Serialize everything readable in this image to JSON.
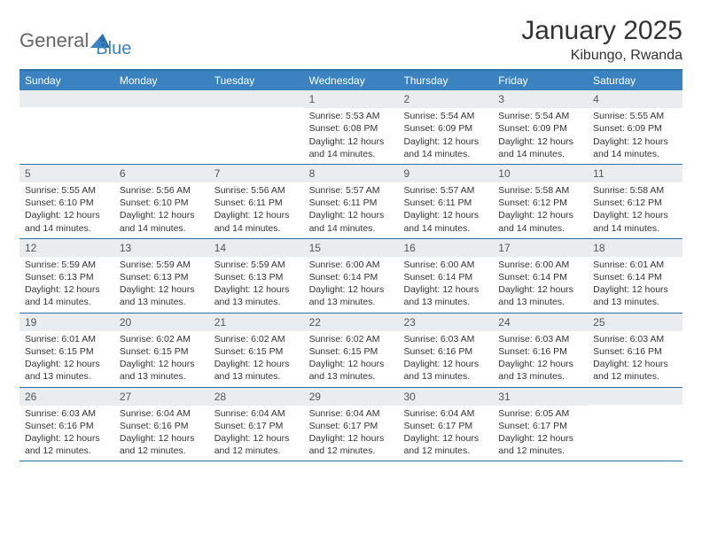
{
  "logo": {
    "part1": "General",
    "part2": "Blue"
  },
  "title": "January 2025",
  "location": "Kibungo, Rwanda",
  "colors": {
    "header_bg": "#3b83c0",
    "border": "#2a6fa8",
    "daynum_bg": "#e9edf0",
    "text": "#333333",
    "logo_gray": "#666666"
  },
  "weekdays": [
    "Sunday",
    "Monday",
    "Tuesday",
    "Wednesday",
    "Thursday",
    "Friday",
    "Saturday"
  ],
  "weeks": [
    [
      {
        "n": "",
        "sr": "",
        "ss": "",
        "dl": ""
      },
      {
        "n": "",
        "sr": "",
        "ss": "",
        "dl": ""
      },
      {
        "n": "",
        "sr": "",
        "ss": "",
        "dl": ""
      },
      {
        "n": "1",
        "sr": "Sunrise: 5:53 AM",
        "ss": "Sunset: 6:08 PM",
        "dl": "Daylight: 12 hours and 14 minutes."
      },
      {
        "n": "2",
        "sr": "Sunrise: 5:54 AM",
        "ss": "Sunset: 6:09 PM",
        "dl": "Daylight: 12 hours and 14 minutes."
      },
      {
        "n": "3",
        "sr": "Sunrise: 5:54 AM",
        "ss": "Sunset: 6:09 PM",
        "dl": "Daylight: 12 hours and 14 minutes."
      },
      {
        "n": "4",
        "sr": "Sunrise: 5:55 AM",
        "ss": "Sunset: 6:09 PM",
        "dl": "Daylight: 12 hours and 14 minutes."
      }
    ],
    [
      {
        "n": "5",
        "sr": "Sunrise: 5:55 AM",
        "ss": "Sunset: 6:10 PM",
        "dl": "Daylight: 12 hours and 14 minutes."
      },
      {
        "n": "6",
        "sr": "Sunrise: 5:56 AM",
        "ss": "Sunset: 6:10 PM",
        "dl": "Daylight: 12 hours and 14 minutes."
      },
      {
        "n": "7",
        "sr": "Sunrise: 5:56 AM",
        "ss": "Sunset: 6:11 PM",
        "dl": "Daylight: 12 hours and 14 minutes."
      },
      {
        "n": "8",
        "sr": "Sunrise: 5:57 AM",
        "ss": "Sunset: 6:11 PM",
        "dl": "Daylight: 12 hours and 14 minutes."
      },
      {
        "n": "9",
        "sr": "Sunrise: 5:57 AM",
        "ss": "Sunset: 6:11 PM",
        "dl": "Daylight: 12 hours and 14 minutes."
      },
      {
        "n": "10",
        "sr": "Sunrise: 5:58 AM",
        "ss": "Sunset: 6:12 PM",
        "dl": "Daylight: 12 hours and 14 minutes."
      },
      {
        "n": "11",
        "sr": "Sunrise: 5:58 AM",
        "ss": "Sunset: 6:12 PM",
        "dl": "Daylight: 12 hours and 14 minutes."
      }
    ],
    [
      {
        "n": "12",
        "sr": "Sunrise: 5:59 AM",
        "ss": "Sunset: 6:13 PM",
        "dl": "Daylight: 12 hours and 14 minutes."
      },
      {
        "n": "13",
        "sr": "Sunrise: 5:59 AM",
        "ss": "Sunset: 6:13 PM",
        "dl": "Daylight: 12 hours and 13 minutes."
      },
      {
        "n": "14",
        "sr": "Sunrise: 5:59 AM",
        "ss": "Sunset: 6:13 PM",
        "dl": "Daylight: 12 hours and 13 minutes."
      },
      {
        "n": "15",
        "sr": "Sunrise: 6:00 AM",
        "ss": "Sunset: 6:14 PM",
        "dl": "Daylight: 12 hours and 13 minutes."
      },
      {
        "n": "16",
        "sr": "Sunrise: 6:00 AM",
        "ss": "Sunset: 6:14 PM",
        "dl": "Daylight: 12 hours and 13 minutes."
      },
      {
        "n": "17",
        "sr": "Sunrise: 6:00 AM",
        "ss": "Sunset: 6:14 PM",
        "dl": "Daylight: 12 hours and 13 minutes."
      },
      {
        "n": "18",
        "sr": "Sunrise: 6:01 AM",
        "ss": "Sunset: 6:14 PM",
        "dl": "Daylight: 12 hours and 13 minutes."
      }
    ],
    [
      {
        "n": "19",
        "sr": "Sunrise: 6:01 AM",
        "ss": "Sunset: 6:15 PM",
        "dl": "Daylight: 12 hours and 13 minutes."
      },
      {
        "n": "20",
        "sr": "Sunrise: 6:02 AM",
        "ss": "Sunset: 6:15 PM",
        "dl": "Daylight: 12 hours and 13 minutes."
      },
      {
        "n": "21",
        "sr": "Sunrise: 6:02 AM",
        "ss": "Sunset: 6:15 PM",
        "dl": "Daylight: 12 hours and 13 minutes."
      },
      {
        "n": "22",
        "sr": "Sunrise: 6:02 AM",
        "ss": "Sunset: 6:15 PM",
        "dl": "Daylight: 12 hours and 13 minutes."
      },
      {
        "n": "23",
        "sr": "Sunrise: 6:03 AM",
        "ss": "Sunset: 6:16 PM",
        "dl": "Daylight: 12 hours and 13 minutes."
      },
      {
        "n": "24",
        "sr": "Sunrise: 6:03 AM",
        "ss": "Sunset: 6:16 PM",
        "dl": "Daylight: 12 hours and 13 minutes."
      },
      {
        "n": "25",
        "sr": "Sunrise: 6:03 AM",
        "ss": "Sunset: 6:16 PM",
        "dl": "Daylight: 12 hours and 12 minutes."
      }
    ],
    [
      {
        "n": "26",
        "sr": "Sunrise: 6:03 AM",
        "ss": "Sunset: 6:16 PM",
        "dl": "Daylight: 12 hours and 12 minutes."
      },
      {
        "n": "27",
        "sr": "Sunrise: 6:04 AM",
        "ss": "Sunset: 6:16 PM",
        "dl": "Daylight: 12 hours and 12 minutes."
      },
      {
        "n": "28",
        "sr": "Sunrise: 6:04 AM",
        "ss": "Sunset: 6:17 PM",
        "dl": "Daylight: 12 hours and 12 minutes."
      },
      {
        "n": "29",
        "sr": "Sunrise: 6:04 AM",
        "ss": "Sunset: 6:17 PM",
        "dl": "Daylight: 12 hours and 12 minutes."
      },
      {
        "n": "30",
        "sr": "Sunrise: 6:04 AM",
        "ss": "Sunset: 6:17 PM",
        "dl": "Daylight: 12 hours and 12 minutes."
      },
      {
        "n": "31",
        "sr": "Sunrise: 6:05 AM",
        "ss": "Sunset: 6:17 PM",
        "dl": "Daylight: 12 hours and 12 minutes."
      },
      {
        "n": "",
        "sr": "",
        "ss": "",
        "dl": ""
      }
    ]
  ]
}
